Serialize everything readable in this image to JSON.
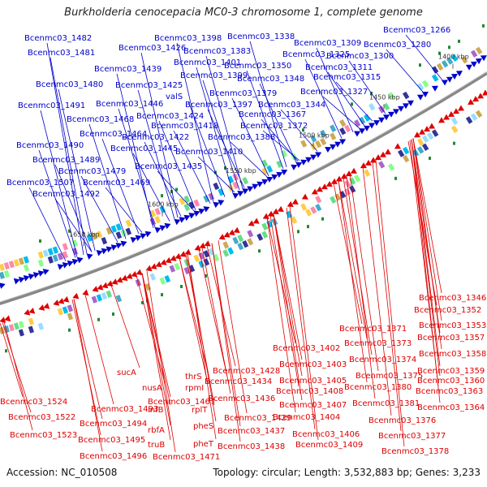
{
  "title": "Burkholderia cenocepacia MC0-3 chromosome 1, complete genome",
  "footer": {
    "accession": "Accession: NC_010508",
    "topology": "Topology: circular; Length: 3,532,883 bp; Genes: 3,233"
  },
  "colors": {
    "forward": "#0000cc",
    "reverse": "#dd0000",
    "backbone": "#888888"
  },
  "ticks": [
    "1400 kbp",
    "1450 kbp",
    "1500 kbp",
    "1550 kbp",
    "1600 kbp",
    "1650 kbp"
  ],
  "forward_labels": [
    "Bcenmc03_1482",
    "Bcenmc03_1481",
    "Bcenmc03_1480",
    "Bcenmc03_1491",
    "Bcenmc03_1468",
    "Bcenmc03_1464",
    "Bcenmc03_1490",
    "Bcenmc03_1489",
    "Bcenmc03_1479",
    "Bcenmc03_1507",
    "Bcenmc03_1469",
    "Bcenmc03_1492",
    "Bcenmc03_1426",
    "Bcenmc03_1439",
    "Bcenmc03_1425",
    "Bcenmc03_1446",
    "Bcenmc03_1424",
    "Bcenmc03_1418",
    "Bcenmc03_1422",
    "Bcenmc03_1445",
    "Bcenmc03_1410",
    "Bcenmc03_1435",
    "Bcenmc03_1398",
    "Bcenmc03_1383",
    "Bcenmc03_1401",
    "Bcenmc03_1399",
    "valS",
    "Bcenmc03_1397",
    "Bcenmc03_1338",
    "Bcenmc03_1350",
    "Bcenmc03_1348",
    "Bcenmc03_1379",
    "Bcenmc03_1367",
    "Bcenmc03_1372",
    "Bcenmc03_1388",
    "Bcenmc03_1309",
    "Bcenmc03_1325",
    "Bcenmc03_1311",
    "Bcenmc03_1315",
    "Bcenmc03_1327",
    "Bcenmc03_1344",
    "Bcenmc03_1266",
    "Bcenmc03_1280",
    "Bcenmc03_1300"
  ],
  "reverse_labels": [
    "Bcenmc03_1346",
    "Bcenmc03_1352",
    "Bcenmc03_1353",
    "Bcenmc03_1357",
    "Bcenmc03_1358",
    "Bcenmc03_1359",
    "Bcenmc03_1360",
    "Bcenmc03_1363",
    "Bcenmc03_1364",
    "Bcenmc03_1371",
    "Bcenmc03_1373",
    "Bcenmc03_1374",
    "Bcenmc03_1375",
    "Bcenmc03_1380",
    "Bcenmc03_1381",
    "Bcenmc03_1376",
    "Bcenmc03_1377",
    "Bcenmc03_1378",
    "Bcenmc03_1402",
    "Bcenmc03_1403",
    "Bcenmc03_1405",
    "Bcenmc03_1408",
    "Bcenmc03_1407",
    "Bcenmc03_1404",
    "Bcenmc03_1406",
    "Bcenmc03_1409",
    "Bcenmc03_1428",
    "Bcenmc03_1434",
    "Bcenmc03_1436",
    "Bcenmc03_1429",
    "Bcenmc03_1437",
    "Bcenmc03_1438",
    "thrS",
    "rpmI",
    "rplT",
    "pheS",
    "pheT",
    "nusA",
    "infB",
    "rbfA",
    "truB",
    "sucA",
    "Bcenmc03_1493",
    "Bcenmc03_1494",
    "Bcenmc03_1495",
    "Bcenmc03_1496",
    "Bcenmc03_1467",
    "Bcenmc03_1471",
    "Bcenmc03_1524",
    "Bcenmc03_1522",
    "Bcenmc03_1523"
  ]
}
